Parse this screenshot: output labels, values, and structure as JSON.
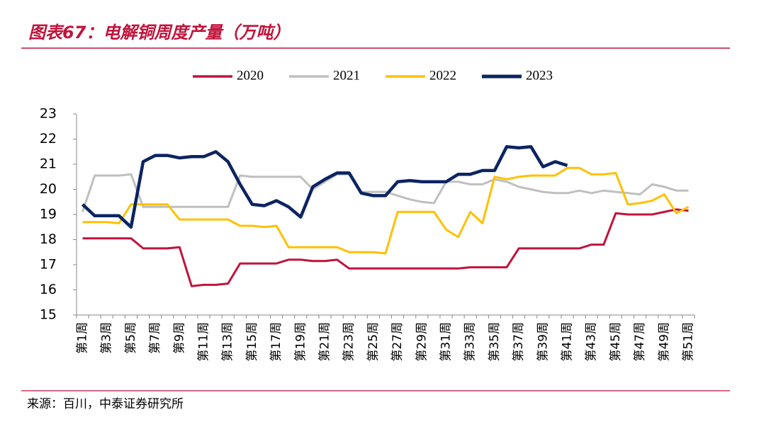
{
  "title": "图表67：电解铜周度产量（万吨）",
  "source": "来源：百川，中泰证券研究所",
  "chart_data": {
    "type": "line",
    "categories": [
      "第1周",
      null,
      "第3周",
      null,
      "第5周",
      null,
      "第7周",
      null,
      "第9周",
      null,
      "第11周",
      null,
      "第13周",
      null,
      "第15周",
      null,
      "第17周",
      null,
      "第19周",
      null,
      "第21周",
      null,
      "第23周",
      null,
      "第25周",
      null,
      "第27周",
      null,
      "第29周",
      null,
      "第31周",
      null,
      "第33周",
      null,
      "第35周",
      null,
      "第37周",
      null,
      "第39周",
      null,
      "第41周",
      null,
      "第43周",
      null,
      "第45周",
      null,
      "第47周",
      null,
      "第49周",
      null,
      "第51周"
    ],
    "series": [
      {
        "name": "2020",
        "color": "#c0143c",
        "values": [
          18.05,
          18.05,
          18.05,
          18.05,
          18.05,
          17.65,
          17.65,
          17.65,
          17.7,
          16.15,
          16.2,
          16.2,
          16.25,
          17.05,
          17.05,
          17.05,
          17.05,
          17.2,
          17.2,
          17.15,
          17.15,
          17.2,
          16.85,
          16.85,
          16.85,
          16.85,
          16.85,
          16.85,
          16.85,
          16.85,
          16.85,
          16.85,
          16.9,
          16.9,
          16.9,
          16.9,
          17.65,
          17.65,
          17.65,
          17.65,
          17.65,
          17.65,
          17.8,
          17.8,
          19.05,
          19.0,
          19.0,
          19.0,
          19.1,
          19.2,
          19.15
        ]
      },
      {
        "name": "2021",
        "color": "#bfbfbf",
        "values": [
          19.1,
          20.55,
          20.55,
          20.55,
          20.6,
          19.3,
          19.3,
          19.3,
          19.3,
          19.3,
          19.3,
          19.3,
          19.3,
          20.55,
          20.5,
          20.5,
          20.5,
          20.5,
          20.5,
          20.0,
          20.3,
          20.6,
          20.6,
          19.9,
          19.9,
          19.9,
          19.75,
          19.6,
          19.5,
          19.45,
          20.3,
          20.3,
          20.2,
          20.2,
          20.4,
          20.3,
          20.1,
          20.0,
          19.9,
          19.85,
          19.85,
          19.95,
          19.85,
          19.95,
          19.9,
          19.85,
          19.8,
          20.2,
          20.1,
          19.95,
          19.95
        ]
      },
      {
        "name": "2022",
        "color": "#ffc000",
        "values": [
          18.7,
          18.7,
          18.7,
          18.65,
          19.4,
          19.4,
          19.4,
          19.4,
          18.8,
          18.8,
          18.8,
          18.8,
          18.8,
          18.55,
          18.55,
          18.5,
          18.55,
          17.7,
          17.7,
          17.7,
          17.7,
          17.7,
          17.5,
          17.5,
          17.5,
          17.45,
          19.1,
          19.1,
          19.1,
          19.1,
          18.4,
          18.1,
          19.1,
          18.65,
          20.5,
          20.4,
          20.5,
          20.55,
          20.55,
          20.55,
          20.85,
          20.85,
          20.6,
          20.6,
          20.65,
          19.4,
          19.45,
          19.55,
          19.8,
          19.05,
          19.3
        ]
      },
      {
        "name": "2023",
        "color": "#0c2461",
        "values": [
          19.4,
          18.95,
          18.95,
          18.95,
          18.5,
          21.1,
          21.35,
          21.35,
          21.25,
          21.3,
          21.3,
          21.5,
          21.1,
          20.2,
          19.4,
          19.35,
          19.55,
          19.3,
          18.9,
          20.1,
          20.4,
          20.65,
          20.65,
          19.85,
          19.75,
          19.75,
          20.3,
          20.35,
          20.3,
          20.3,
          20.3,
          20.6,
          20.6,
          20.75,
          20.75,
          21.7,
          21.65,
          21.7,
          20.9,
          21.1,
          20.95,
          null,
          null,
          null,
          null,
          null,
          null,
          null,
          null,
          null,
          null
        ]
      }
    ],
    "ylim": [
      15,
      23
    ],
    "yticks": [
      15,
      16,
      17,
      18,
      19,
      20,
      21,
      22,
      23
    ],
    "grid": false,
    "legend": "top"
  }
}
